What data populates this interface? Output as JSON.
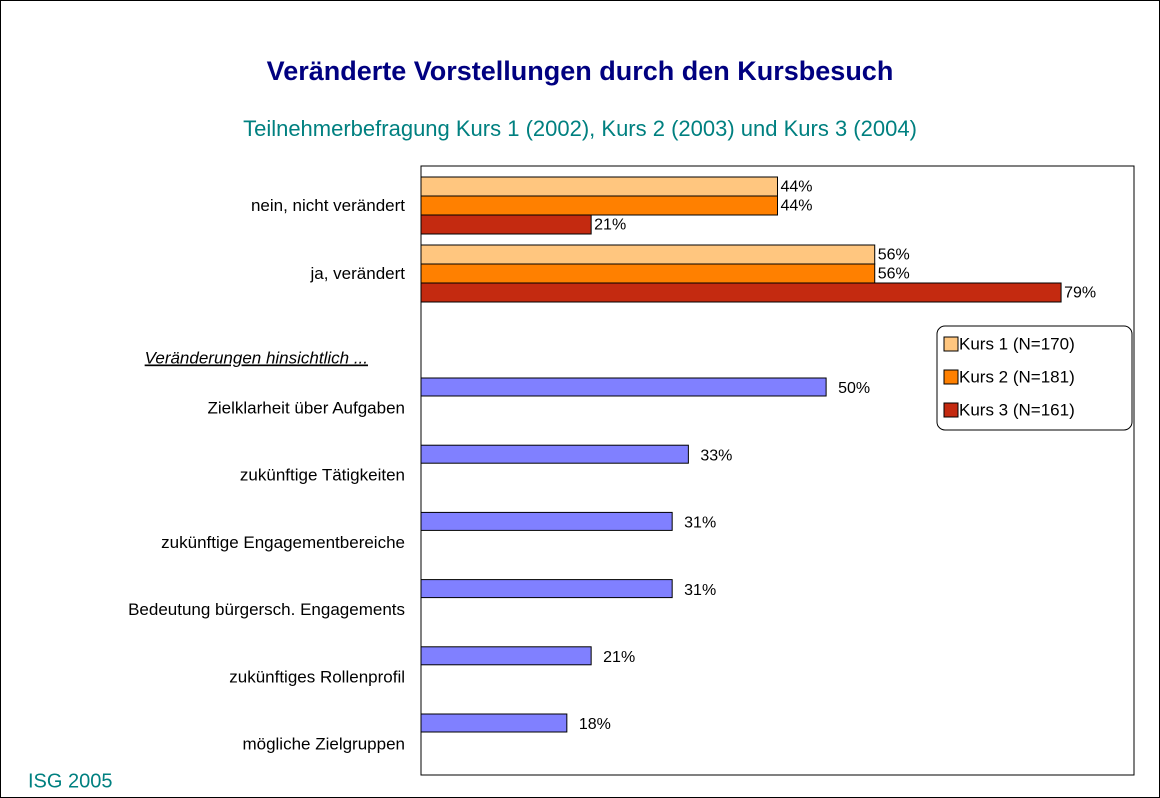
{
  "footer": "ISG 2005",
  "chart_data": [
    {
      "type": "bar",
      "orientation": "horizontal",
      "title": "Veränderte Vorstellungen durch den Kursbesuch",
      "subtitle": "Teilnehmerbefragung Kurs 1 (2002), Kurs 2 (2003) und Kurs 3 (2004)",
      "categories": [
        "nein, nicht verändert",
        "ja, verändert"
      ],
      "series": [
        {
          "name": "Kurs 1 (N=170)",
          "color": "#ffc67f",
          "values": [
            44,
            56
          ],
          "value_labels": [
            "44%",
            "56%"
          ]
        },
        {
          "name": "Kurs 2 (N=181)",
          "color": "#ff8000",
          "values": [
            44,
            56
          ],
          "value_labels": [
            "44%",
            "56%"
          ]
        },
        {
          "name": "Kurs 3 (N=161)",
          "color": "#c42a10",
          "values": [
            21,
            79
          ],
          "value_labels": [
            "21%",
            "79%"
          ]
        }
      ],
      "xlim": [
        0,
        88
      ],
      "legend": "right"
    },
    {
      "type": "bar",
      "orientation": "horizontal",
      "annotation": "Veränderungen hinsichtlich ...",
      "categories": [
        "Zielklarheit über Aufgaben",
        "zukünftige Tätigkeiten",
        "zukünftige Engagementbereiche",
        "Bedeutung bürgersch. Engagements",
        "zukünftiges Rollenprofil",
        "mögliche Zielgruppen"
      ],
      "values": [
        50,
        33,
        31,
        31,
        21,
        18
      ],
      "value_labels": [
        "50%",
        "33%",
        "31%",
        "31%",
        "21%",
        "18%"
      ],
      "color": "#8080ff",
      "xlim": [
        0,
        88
      ]
    }
  ]
}
